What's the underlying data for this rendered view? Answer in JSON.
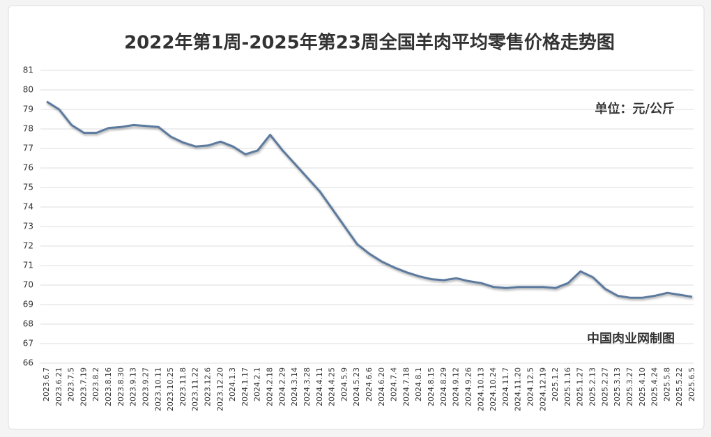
{
  "chart_data": {
    "type": "line",
    "title": "2022年第1周-2025年第23周全国羊肉平均零售价格走势图",
    "unit_label": "单位：元/公斤",
    "source": "中国肉业网制图",
    "categories": [
      "2023.6.7",
      "2023.6.21",
      "2023.7.5",
      "2023.7.19",
      "2023.8.2",
      "2023.8.16",
      "2023.8.30",
      "2023.9.13",
      "2023.9.27",
      "2023.10.11",
      "2023.10.25",
      "2023.11.8",
      "2023.11.22",
      "2023.12.6",
      "2023.12.20",
      "2024.1.3",
      "2024.1.17",
      "2024.2.1",
      "2024.2.18",
      "2024.2.29",
      "2024.3.14",
      "2024.3.28",
      "2024.4.11",
      "2024.4.25",
      "2024.5.9",
      "2024.5.23",
      "2024.6.6",
      "2024.6.20",
      "2024.7.4",
      "2024.7.18",
      "2024.8.1",
      "2024.8.15",
      "2024.8.29",
      "2024.9.12",
      "2024.9.26",
      "2024.10.13",
      "2024.10.24",
      "2024.11.7",
      "2024.11.20",
      "2024.12.5",
      "2024.12.19",
      "2025.1.2",
      "2025.1.16",
      "2025.1.27",
      "2025.2.13",
      "2025.2.27",
      "2025.3.13",
      "2025.3.27",
      "2025.4.10",
      "2025.4.24",
      "2025.5.8",
      "2025.5.22",
      "2025.6.5"
    ],
    "series": [
      {
        "name": "全国羊肉平均零售价格",
        "color": "#5b7a9e",
        "values": [
          79.4,
          79.0,
          78.2,
          77.8,
          77.8,
          78.05,
          78.1,
          78.2,
          78.15,
          78.1,
          77.6,
          77.3,
          77.1,
          77.15,
          77.35,
          77.1,
          76.7,
          76.9,
          77.7,
          76.9,
          76.2,
          75.5,
          74.8,
          73.9,
          73.0,
          72.1,
          71.6,
          71.2,
          70.9,
          70.65,
          70.45,
          70.3,
          70.25,
          70.35,
          70.2,
          70.1,
          69.9,
          69.85,
          69.9,
          69.9,
          69.9,
          69.85,
          70.1,
          70.7,
          70.4,
          69.8,
          69.45,
          69.35,
          69.35,
          69.45,
          69.6,
          69.5,
          69.4
        ]
      }
    ],
    "ylim": [
      66,
      81
    ],
    "yticks": [
      66,
      67,
      68,
      69,
      70,
      71,
      72,
      73,
      74,
      75,
      76,
      77,
      78,
      79,
      80,
      81
    ],
    "grid": true
  }
}
